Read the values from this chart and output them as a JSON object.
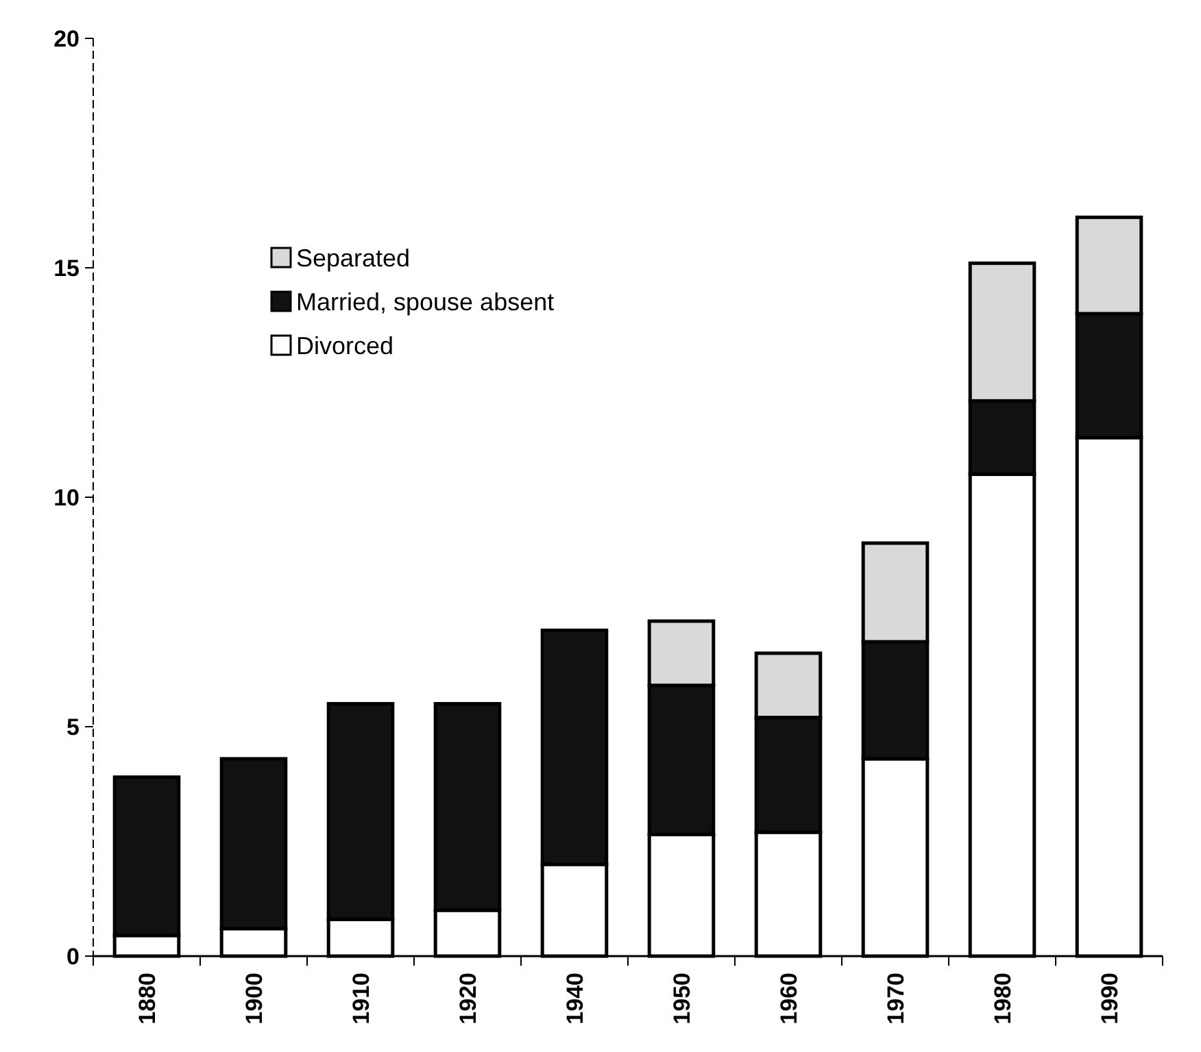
{
  "chart_data": {
    "type": "bar",
    "stacked": true,
    "categories": [
      "1880",
      "1900",
      "1910",
      "1920",
      "1940",
      "1950",
      "1960",
      "1970",
      "1980",
      "1990"
    ],
    "series": [
      {
        "name": "Divorced",
        "color": "#ffffff",
        "values": [
          0.45,
          0.6,
          0.8,
          1.0,
          2.0,
          2.65,
          2.7,
          4.3,
          10.5,
          11.3
        ]
      },
      {
        "name": "Married, spouse absent",
        "color": "#111111",
        "values": [
          3.45,
          3.7,
          4.7,
          4.5,
          5.1,
          3.25,
          2.5,
          2.55,
          1.6,
          2.7
        ]
      },
      {
        "name": "Separated",
        "color": "#d9d9d9",
        "values": [
          0,
          0,
          0,
          0,
          0,
          1.4,
          1.4,
          2.15,
          3.0,
          2.1
        ]
      }
    ],
    "ylim": [
      0,
      20
    ],
    "yticks": [
      0,
      5,
      10,
      15,
      20
    ],
    "legend": "top left"
  }
}
